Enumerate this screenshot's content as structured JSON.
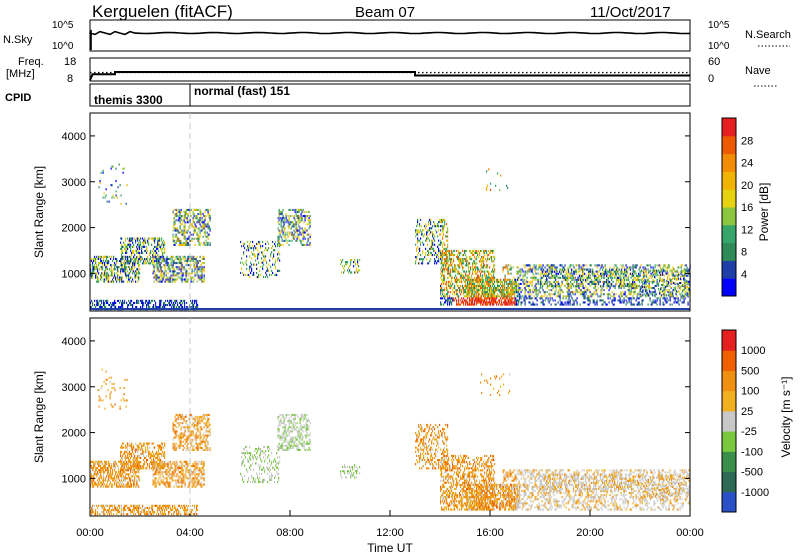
{
  "header": {
    "radar": "Kerguelen (fitACF)",
    "beam": "Beam 07",
    "date": "11/Oct/2017"
  },
  "status_panels": {
    "nsky_label": "N.Sky",
    "nsky_ticks": [
      "10^5",
      "10^0"
    ],
    "nsearch_label": "N.Search",
    "nsearch_ticks": [
      "10^5",
      "10^0"
    ],
    "freq_label": "Freq.",
    "freq_unit": "[MHz]",
    "freq_ticks": [
      "18",
      "8"
    ],
    "nave_label": "Nave",
    "nave_ticks": [
      "60",
      "0"
    ],
    "cpid_label": "CPID",
    "cpid_segments": [
      {
        "name": "themis 3300",
        "start_hour": 0,
        "end_hour": 4
      },
      {
        "name": "normal (fast) 151",
        "start_hour": 4,
        "end_hour": 24
      }
    ],
    "freq_series": [
      [
        0,
        8.4
      ],
      [
        0.1,
        10.9
      ],
      [
        1.0,
        10.9
      ],
      [
        1.0,
        11.9
      ],
      [
        13.0,
        11.9
      ],
      [
        13.0,
        10.4
      ],
      [
        24,
        10.4
      ]
    ],
    "nave_series": [
      [
        0,
        22
      ],
      [
        24,
        22
      ]
    ]
  },
  "chart_data": [
    {
      "type": "heatmap",
      "name": "power",
      "ylabel": "Slant Range [km]",
      "yticks": [
        1000,
        2000,
        3000,
        4000
      ],
      "ylim": [
        180,
        4500
      ],
      "xlim": [
        0,
        24
      ],
      "colorbar_label": "Power [dB]",
      "colorbar_ticks": [
        "28",
        "24",
        "20",
        "16",
        "12",
        "8",
        "4"
      ],
      "colors": [
        "#0000ff",
        "#1f3fa8",
        "#2e8a57",
        "#35a56a",
        "#8cc63f",
        "#e6d210",
        "#f0b400",
        "#f28c00",
        "#ee5a00",
        "#e62020"
      ]
    },
    {
      "type": "heatmap",
      "name": "velocity",
      "ylabel": "Slant Range [km]",
      "xlabel": "Time UT",
      "yticks": [
        1000,
        2000,
        3000,
        4000
      ],
      "xticks": [
        "00:00",
        "04:00",
        "08:00",
        "12:00",
        "16:00",
        "20:00",
        "00:00"
      ],
      "ylim": [
        180,
        4500
      ],
      "xlim": [
        0,
        24
      ],
      "colorbar_label": "Velocity [m s⁻¹]",
      "colorbar_ticks": [
        "1000",
        "500",
        "100",
        "25",
        "-25",
        "-100",
        "-500",
        "-1000"
      ],
      "colors": [
        "#2a50c8",
        "#2d6a55",
        "#3c8f4a",
        "#79c840",
        "#c8c8c8",
        "#f0b020",
        "#f09010",
        "#ee6000",
        "#e62020"
      ]
    }
  ]
}
